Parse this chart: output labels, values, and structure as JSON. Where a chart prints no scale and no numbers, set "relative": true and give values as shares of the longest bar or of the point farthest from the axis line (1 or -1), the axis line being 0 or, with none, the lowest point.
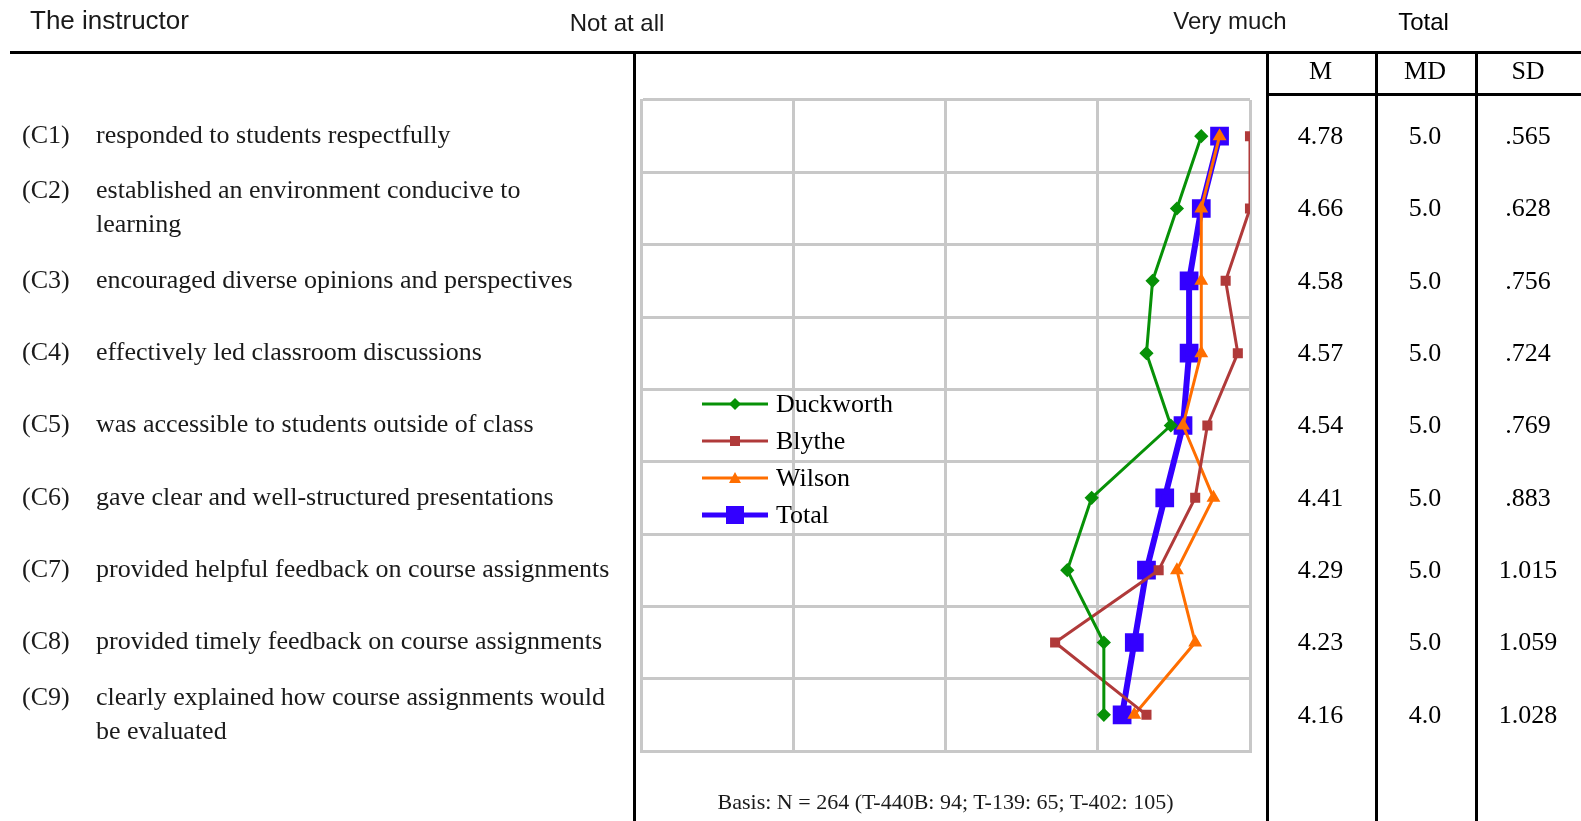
{
  "chart_data": [
    {
      "type": "line",
      "orientation": "horizontal",
      "relative": true,
      "title": "The instructor",
      "categories": [
        "(C1) responded to students respectfully",
        "(C2) established an environment conducive to learning",
        "(C3) encouraged diverse opinions and perspectives",
        "(C4) effectively led classroom discussions",
        "(C5) was accessible to students outside of class",
        "(C6) gave clear and well-structured presentations",
        "(C7) provided helpful feedback on course assignments",
        "(C8) provided timely feedback on course assignments",
        "(C9) clearly explained how course assignments would be evaluated"
      ],
      "series": [
        {
          "name": "Duckworth",
          "color": "#079107",
          "marker": "diamond",
          "values": [
            0.92,
            0.88,
            0.84,
            0.83,
            0.87,
            0.74,
            0.7,
            0.76,
            0.76
          ]
        },
        {
          "name": "Blythe",
          "color": "#b03a3a",
          "marker": "square",
          "values": [
            1,
            1,
            0.96,
            0.98,
            0.93,
            0.91,
            0.85,
            0.68,
            0.83
          ]
        },
        {
          "name": "Wilson",
          "color": "#ff6e00",
          "marker": "triangle",
          "values": [
            0.95,
            0.92,
            0.92,
            0.92,
            0.89,
            0.94,
            0.88,
            0.91,
            0.81
          ]
        },
        {
          "name": "Total",
          "color": "#3300ff",
          "marker": "square",
          "values": [
            0.95,
            0.92,
            0.9,
            0.9,
            0.89,
            0.86,
            0.83,
            0.81,
            0.79
          ]
        }
      ],
      "grid": true,
      "legend": "left",
      "annotations": [
        "Not at all",
        "Very much",
        "Basis: N = 264 (T-440B: 94; T-139: 65; T-402: 105)"
      ]
    },
    {
      "type": "other",
      "title": "Total",
      "categories": [
        "M",
        "MD",
        "SD"
      ],
      "cell_labels": [
        [
          "4.78",
          "5.0",
          ".565"
        ],
        [
          "4.66",
          "5.0",
          ".628"
        ],
        [
          "4.58",
          "5.0",
          ".756"
        ],
        [
          "4.57",
          "5.0",
          ".724"
        ],
        [
          "4.54",
          "5.0",
          ".769"
        ],
        [
          "4.41",
          "5.0",
          ".883"
        ],
        [
          "4.29",
          "5.0",
          "1.015"
        ],
        [
          "4.23",
          "5.0",
          "1.059"
        ],
        [
          "4.16",
          "4.0",
          "1.028"
        ]
      ]
    }
  ]
}
